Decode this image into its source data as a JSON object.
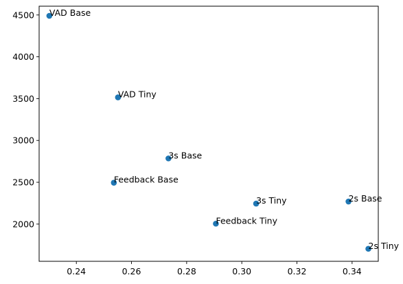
{
  "chart_data": {
    "type": "scatter",
    "title": "",
    "xlabel": "",
    "ylabel": "",
    "xlim": [
      0.2265,
      0.3495
    ],
    "ylim": [
      1555,
      4605
    ],
    "xticks": [
      0.24,
      0.26,
      0.28,
      0.3,
      0.32,
      0.34
    ],
    "yticks": [
      2000,
      2500,
      3000,
      3500,
      4000,
      4500
    ],
    "grid": false,
    "legend": "none",
    "marker_color": "#1f77b4",
    "points": [
      {
        "label": "VAD Base",
        "x": 0.2302,
        "y": 4490
      },
      {
        "label": "VAD Tiny",
        "x": 0.2551,
        "y": 3515
      },
      {
        "label": "3s Base",
        "x": 0.2734,
        "y": 2785
      },
      {
        "label": "Feedback Base",
        "x": 0.2536,
        "y": 2495
      },
      {
        "label": "3s Tiny",
        "x": 0.3052,
        "y": 2245
      },
      {
        "label": "2s Base",
        "x": 0.3387,
        "y": 2270
      },
      {
        "label": "Feedback Tiny",
        "x": 0.2906,
        "y": 2005
      },
      {
        "label": "2s Tiny",
        "x": 0.3459,
        "y": 1705
      }
    ]
  }
}
